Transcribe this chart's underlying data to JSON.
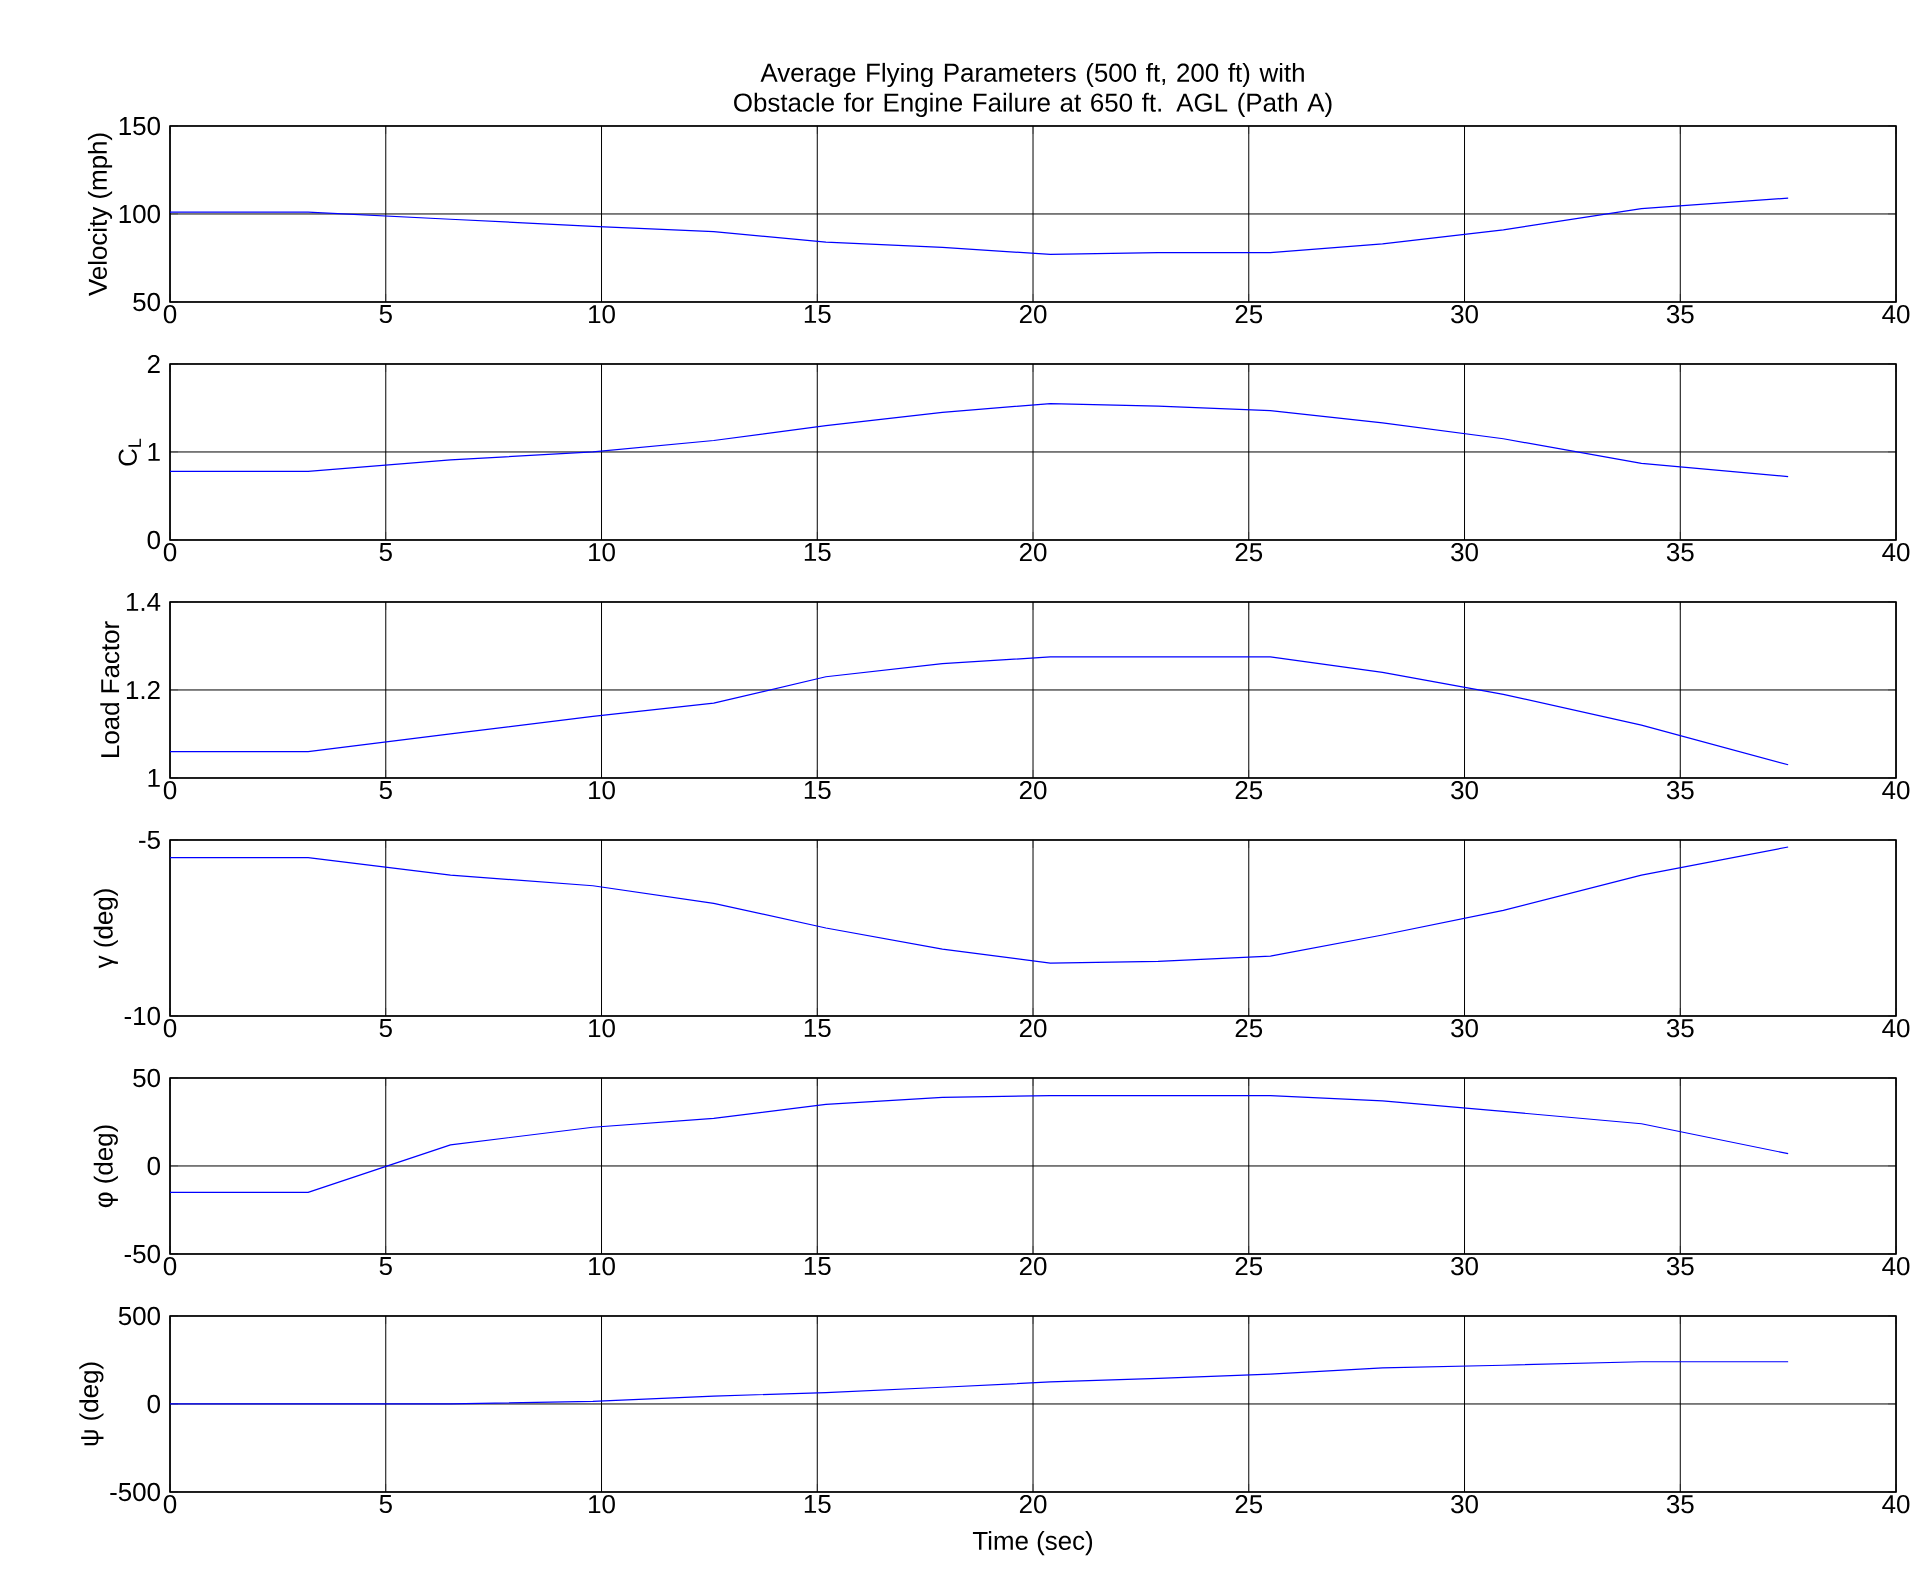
{
  "chart_data": [
    {
      "type": "line",
      "title": "Average Flying Parameters (500 ft, 200 ft) with Obstacle for Engine Failure at 650 ft. AGL (Path A)",
      "ylabel": "Velocity (mph)",
      "x": [
        0,
        3.2,
        6.5,
        9.8,
        12.6,
        15.2,
        17.9,
        20.4,
        22.9,
        25.5,
        28.1,
        30.9,
        34.1,
        37.5
      ],
      "series": [
        {
          "color": "#0000ff",
          "values": [
            101,
            101,
            97,
            93,
            90,
            84,
            81,
            77,
            78,
            78,
            83,
            91,
            103,
            109
          ]
        }
      ],
      "xlim": [
        0,
        40
      ],
      "xticks": [
        0,
        5,
        10,
        15,
        20,
        25,
        30,
        35,
        40
      ],
      "ylim": [
        50,
        150
      ],
      "yticks": [
        50,
        100,
        150
      ],
      "grid": true,
      "marker": "none",
      "line_style": "solid"
    },
    {
      "type": "line",
      "ylabel": "C$_{L}$",
      "x": [
        0,
        3.2,
        6.5,
        9.8,
        12.6,
        15.2,
        17.9,
        20.4,
        22.9,
        25.5,
        28.1,
        30.9,
        34.1,
        37.5
      ],
      "series": [
        {
          "color": "#0000ff",
          "values": [
            0.78,
            0.78,
            0.91,
            1.0,
            1.13,
            1.3,
            1.45,
            1.55,
            1.52,
            1.47,
            1.33,
            1.15,
            0.87,
            0.72
          ]
        }
      ],
      "xlim": [
        0,
        40
      ],
      "xticks": [
        0,
        5,
        10,
        15,
        20,
        25,
        30,
        35,
        40
      ],
      "ylim": [
        0,
        2
      ],
      "yticks": [
        0,
        1,
        2
      ],
      "grid": true,
      "marker": "none",
      "line_style": "solid"
    },
    {
      "type": "line",
      "ylabel": "Load Factor",
      "x": [
        0,
        3.2,
        6.5,
        9.8,
        12.6,
        15.2,
        17.9,
        20.4,
        22.9,
        25.5,
        28.1,
        30.9,
        34.1,
        37.5
      ],
      "series": [
        {
          "color": "#0000ff",
          "values": [
            1.06,
            1.06,
            1.1,
            1.14,
            1.17,
            1.23,
            1.26,
            1.275,
            1.275,
            1.275,
            1.24,
            1.19,
            1.12,
            1.03
          ]
        }
      ],
      "xlim": [
        0,
        40
      ],
      "xticks": [
        0,
        5,
        10,
        15,
        20,
        25,
        30,
        35,
        40
      ],
      "ylim": [
        1,
        1.4
      ],
      "yticks": [
        1,
        1.2,
        1.4
      ],
      "grid": true,
      "marker": "none",
      "line_style": "solid"
    },
    {
      "type": "line",
      "ylabel": "γ (deg)",
      "x": [
        0,
        3.2,
        6.5,
        9.8,
        12.6,
        15.2,
        17.9,
        20.4,
        22.9,
        25.5,
        28.1,
        30.9,
        34.1,
        37.5
      ],
      "series": [
        {
          "color": "#0000ff",
          "values": [
            -5.5,
            -5.5,
            -6.0,
            -6.3,
            -6.8,
            -7.5,
            -8.1,
            -8.5,
            -8.45,
            -8.3,
            -7.7,
            -7.0,
            -6.0,
            -5.2
          ]
        }
      ],
      "xlim": [
        0,
        40
      ],
      "xticks": [
        0,
        5,
        10,
        15,
        20,
        25,
        30,
        35,
        40
      ],
      "ylim": [
        -10,
        -5
      ],
      "yticks": [
        -10,
        -5
      ],
      "grid": true,
      "marker": "none",
      "line_style": "solid"
    },
    {
      "type": "line",
      "ylabel": "φ (deg)",
      "x": [
        0,
        3.2,
        6.5,
        9.8,
        12.6,
        15.2,
        17.9,
        20.4,
        22.9,
        25.5,
        28.1,
        30.9,
        34.1,
        37.5
      ],
      "series": [
        {
          "color": "#0000ff",
          "values": [
            -15,
            -15,
            12,
            22,
            27,
            35,
            39,
            40,
            40,
            40,
            37,
            31,
            24,
            7
          ]
        }
      ],
      "xlim": [
        0,
        40
      ],
      "xticks": [
        0,
        5,
        10,
        15,
        20,
        25,
        30,
        35,
        40
      ],
      "ylim": [
        -50,
        50
      ],
      "yticks": [
        -50,
        0,
        50
      ],
      "grid": true,
      "marker": "none",
      "line_style": "solid"
    },
    {
      "type": "line",
      "ylabel": "ψ (deg)",
      "xlabel": "Time (sec)",
      "x": [
        0,
        3.2,
        6.5,
        9.8,
        12.6,
        15.2,
        17.9,
        20.4,
        22.9,
        25.5,
        28.1,
        30.9,
        34.1,
        37.5
      ],
      "series": [
        {
          "color": "#0000ff",
          "values": [
            0,
            0,
            0,
            15,
            45,
            65,
            95,
            125,
            145,
            170,
            205,
            220,
            240,
            240
          ]
        }
      ],
      "xlim": [
        0,
        40
      ],
      "xticks": [
        0,
        5,
        10,
        15,
        20,
        25,
        30,
        35,
        40
      ],
      "ylim": [
        -500,
        500
      ],
      "yticks": [
        -500,
        0,
        500
      ],
      "grid": true,
      "marker": "none",
      "line_style": "solid"
    }
  ]
}
